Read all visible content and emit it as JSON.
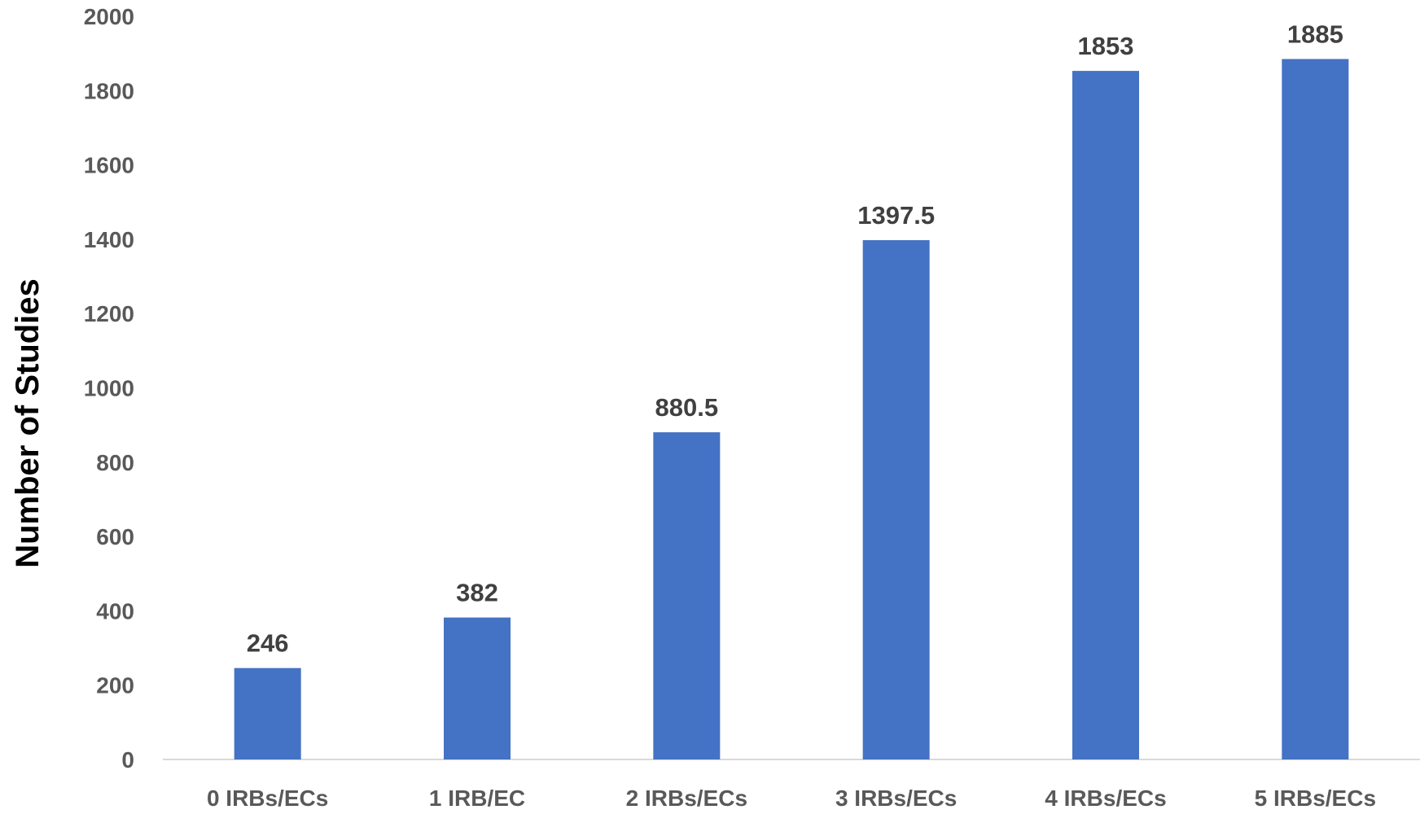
{
  "chart_data": {
    "type": "bar",
    "title": "",
    "xlabel": "",
    "ylabel": "Number of Studies",
    "categories": [
      "0 IRBs/ECs",
      "1 IRB/EC",
      "2 IRBs/ECs",
      "3 IRBs/ECs",
      "4 IRBs/ECs",
      "5 IRBs/ECs"
    ],
    "values": [
      246,
      382,
      880.5,
      1397.5,
      1853,
      1885
    ],
    "data_labels": [
      "246",
      "382",
      "880.5",
      "1397.5",
      "1853",
      "1885"
    ],
    "ylim": [
      0,
      2000
    ],
    "yticks": [
      0,
      200,
      400,
      600,
      800,
      1000,
      1200,
      1400,
      1600,
      1800,
      2000
    ],
    "grid": false,
    "legend": "none",
    "colors": {
      "bar": "#4472C4",
      "axis_line": "#D9D9D9"
    }
  }
}
